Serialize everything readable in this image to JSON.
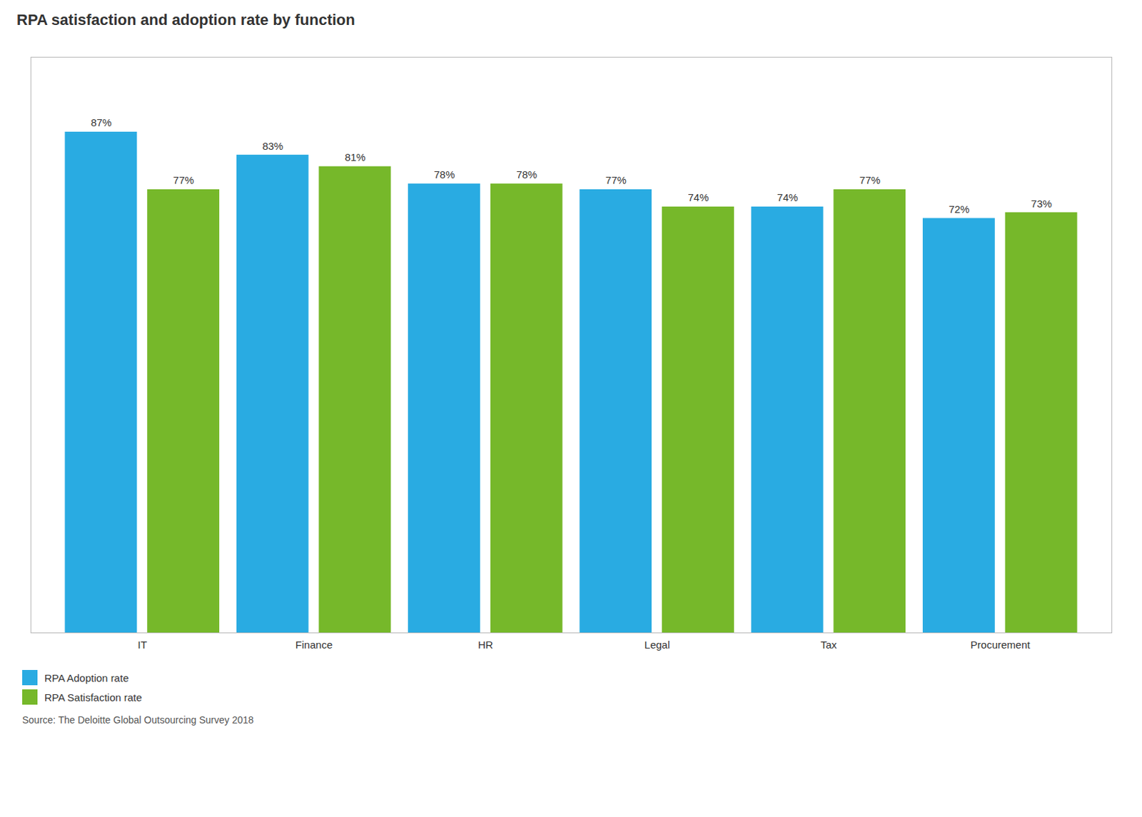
{
  "chart_data": {
    "type": "bar",
    "title": "RPA satisfaction and adoption rate by function",
    "categories": [
      "IT",
      "Finance",
      "HR",
      "Legal",
      "Tax",
      "Procurement"
    ],
    "series": [
      {
        "name": "RPA Adoption rate",
        "color": "#29ABE2",
        "values": [
          87,
          83,
          78,
          77,
          74,
          72
        ],
        "value_labels": [
          "87%",
          "83%",
          "78%",
          "77%",
          "74%",
          "72%"
        ]
      },
      {
        "name": "RPA Satisfaction rate",
        "color": "#76B82A",
        "values": [
          77,
          81,
          78,
          74,
          77,
          73
        ],
        "value_labels": [
          "77%",
          "81%",
          "78%",
          "74%",
          "77%",
          "73%"
        ]
      }
    ],
    "ylim": [
      0,
      100
    ],
    "grid": false,
    "legend": "bottom",
    "data_labels": true,
    "tick_labels": "x",
    "caption": "Source: The Deloitte Global Outsourcing Survey 2018"
  }
}
